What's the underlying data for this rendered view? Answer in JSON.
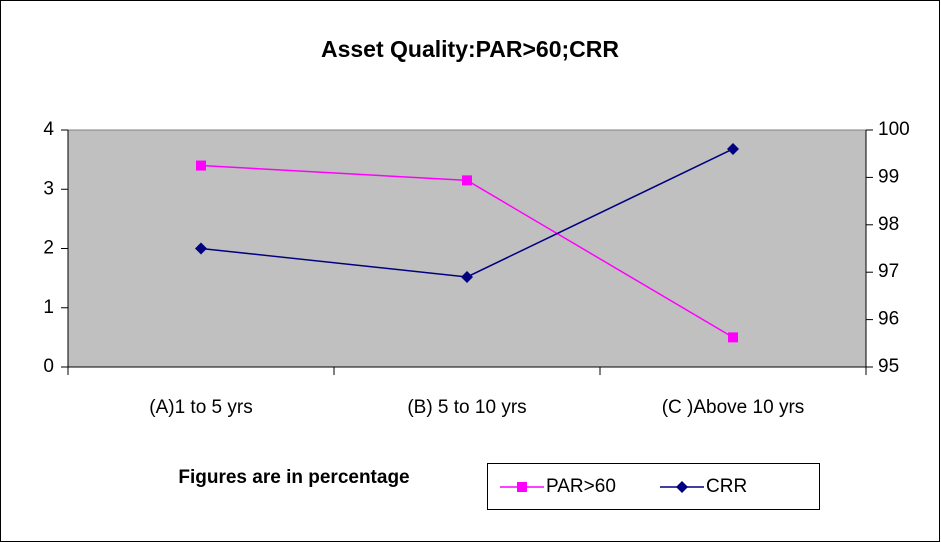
{
  "chart_data": {
    "type": "line",
    "title": "Asset Quality:PAR>60;CRR",
    "categories": [
      "(A)1 to 5 yrs",
      "(B) 5 to 10 yrs",
      "(C )Above 10 yrs"
    ],
    "series": [
      {
        "name": "PAR>60",
        "color": "#ff00ff",
        "marker": "square",
        "values": [
          3.4,
          3.15,
          0.5
        ]
      },
      {
        "name": "CRR",
        "color": "#000080",
        "marker": "diamond",
        "axis": "y2",
        "values": [
          97.5,
          96.9,
          99.6
        ]
      }
    ],
    "ylim": [
      0,
      4
    ],
    "yticks": [
      0,
      1,
      2,
      3,
      4
    ],
    "y2lim": [
      95,
      100
    ],
    "y2ticks": [
      95,
      96,
      97,
      98,
      99,
      100
    ],
    "annotation": "Figures are in percentage",
    "legend": "bottom",
    "plot_background": "#c0c0c0"
  }
}
